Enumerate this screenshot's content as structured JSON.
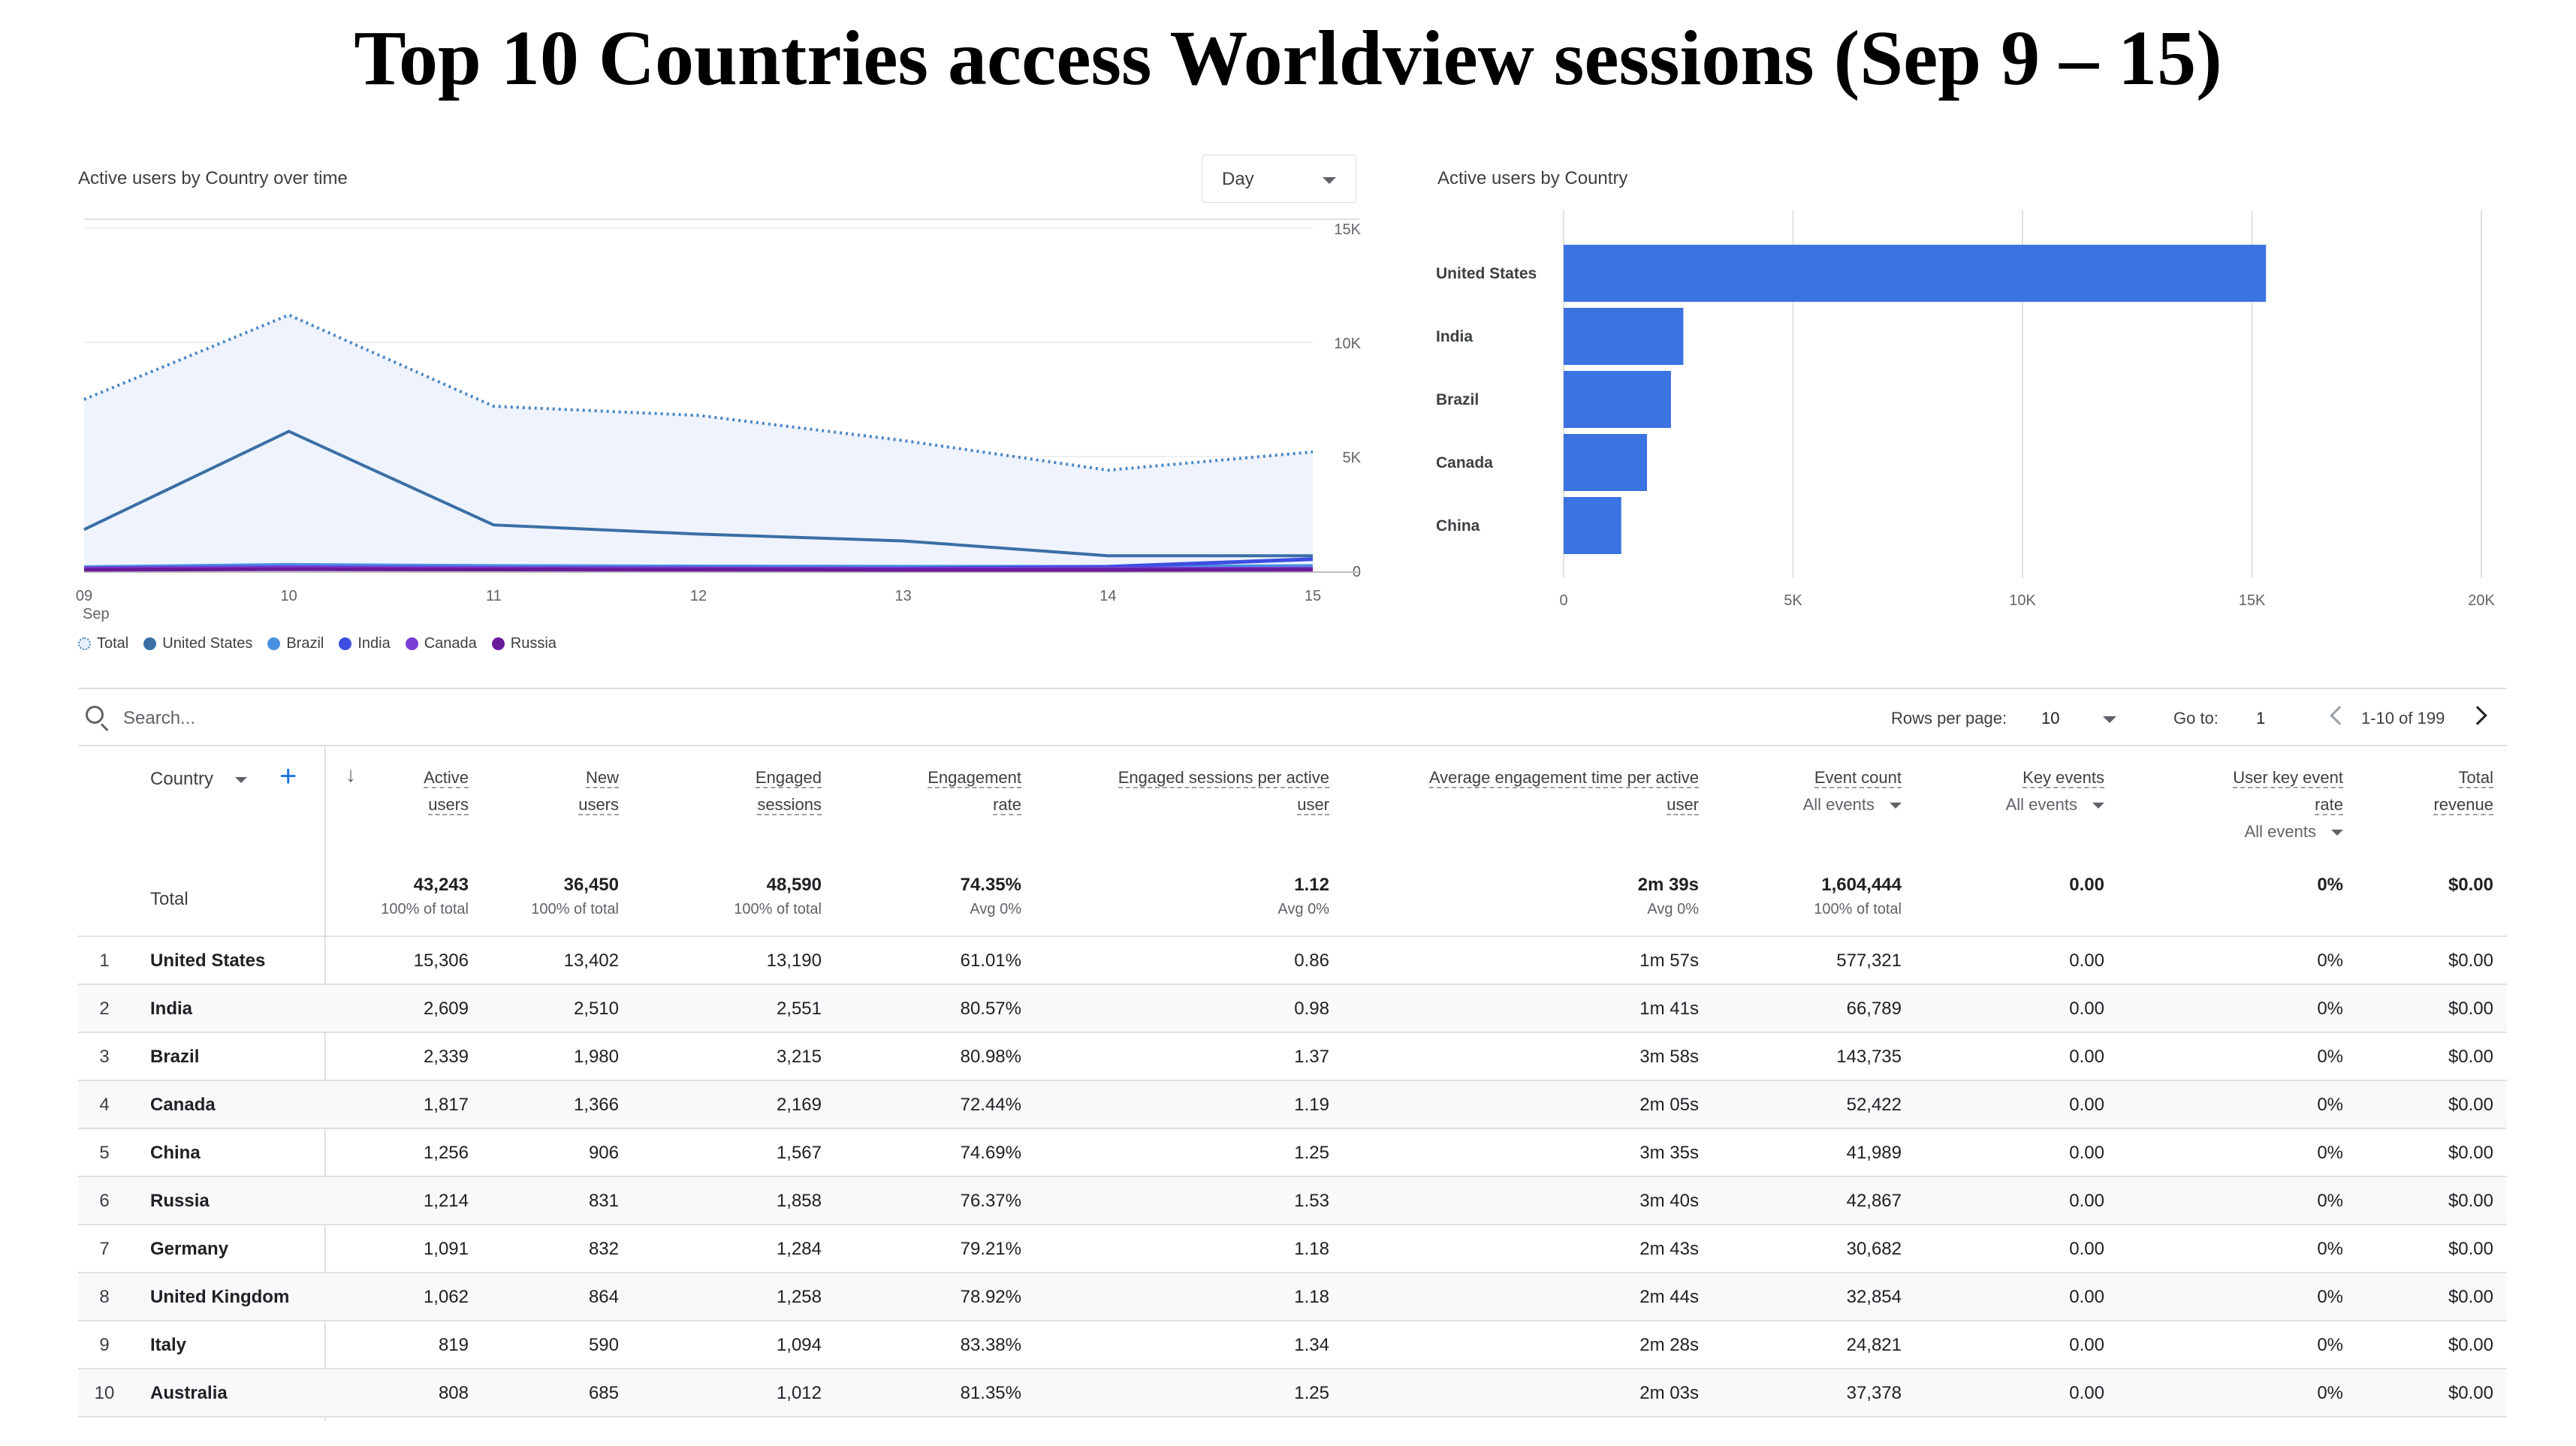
{
  "page": {
    "title": "Top 10 Countries access Worldview sessions (Sep 9 – 15)"
  },
  "line_card": {
    "title": "Active users by Country over time",
    "granularity": "Day"
  },
  "bar_card": {
    "title": "Active users by Country"
  },
  "legend": [
    {
      "label": "Total",
      "color": "#e8f0fe"
    },
    {
      "label": "United States",
      "color": "#3a6fa5"
    },
    {
      "label": "Brazil",
      "color": "#4a90e2"
    },
    {
      "label": "India",
      "color": "#3c4fe0"
    },
    {
      "label": "Canada",
      "color": "#7a3fd6"
    },
    {
      "label": "Russia",
      "color": "#6a1b9a"
    }
  ],
  "chart_data": [
    {
      "type": "line",
      "title": "Active users by Country over time",
      "x": [
        "09",
        "10",
        "11",
        "12",
        "13",
        "14",
        "15"
      ],
      "x_sub_label": "Sep",
      "ylim": [
        0,
        15000
      ],
      "y_ticks": [
        "0",
        "5K",
        "10K",
        "15K"
      ],
      "y_tick_values": [
        0,
        5000,
        10000,
        15000
      ],
      "grid": true,
      "legend_position": "bottom-left",
      "series": [
        {
          "name": "Total",
          "style": "dotted-area",
          "color": "#4a86c5",
          "values": [
            7500,
            11200,
            7200,
            6800,
            5700,
            4400,
            5200
          ]
        },
        {
          "name": "United States",
          "color": "#3a6fa5",
          "values": [
            1800,
            6100,
            2000,
            1600,
            1300,
            650,
            650
          ]
        },
        {
          "name": "Brazil",
          "color": "#4a90e2",
          "values": [
            150,
            250,
            200,
            180,
            170,
            160,
            200
          ]
        },
        {
          "name": "India",
          "color": "#3c4fe0",
          "values": [
            100,
            150,
            120,
            110,
            90,
            170,
            500
          ]
        },
        {
          "name": "Canada",
          "color": "#7a3fd6",
          "values": [
            90,
            140,
            110,
            100,
            80,
            80,
            90
          ]
        },
        {
          "name": "Russia",
          "color": "#6a1b9a",
          "values": [
            40,
            60,
            50,
            40,
            30,
            30,
            40
          ]
        }
      ]
    },
    {
      "type": "bar",
      "orientation": "horizontal",
      "title": "Active users by Country",
      "categories": [
        "United States",
        "India",
        "Brazil",
        "Canada",
        "China"
      ],
      "values": [
        15306,
        2609,
        2339,
        1817,
        1256
      ],
      "xlim": [
        0,
        20000
      ],
      "x_ticks": [
        "0",
        "5K",
        "10K",
        "15K",
        "20K"
      ],
      "x_tick_values": [
        0,
        5000,
        10000,
        15000,
        20000
      ],
      "color": "#3b73e0",
      "grid": true
    }
  ],
  "search": {
    "placeholder": "Search..."
  },
  "pager": {
    "rows_label": "Rows per page:",
    "rows_value": "10",
    "goto_label": "Go to:",
    "goto_value": "1",
    "range": "1-10 of 199"
  },
  "table": {
    "dimension_header": "Country",
    "headers": {
      "active_users": [
        "Active",
        "users"
      ],
      "new_users": [
        "New",
        "users"
      ],
      "engaged_sessions": [
        "Engaged",
        "sessions"
      ],
      "engagement_rate": [
        "Engagement",
        "rate"
      ],
      "sessions_per_user": [
        "Engaged sessions per active",
        "user"
      ],
      "avg_time": [
        "Average engagement time per active",
        "user"
      ],
      "event_count": [
        "Event count"
      ],
      "key_events": [
        "Key events"
      ],
      "user_key_rate": [
        "User key event",
        "rate"
      ],
      "revenue": [
        "Total",
        "revenue"
      ]
    },
    "header_subs": {
      "event_count": "All events",
      "key_events": "All events",
      "user_key_rate": "All events"
    },
    "totals_label": "Total",
    "totals": [
      {
        "v": "43,243",
        "s": "100% of total"
      },
      {
        "v": "36,450",
        "s": "100% of total"
      },
      {
        "v": "48,590",
        "s": "100% of total"
      },
      {
        "v": "74.35%",
        "s": "Avg 0%"
      },
      {
        "v": "1.12",
        "s": "Avg 0%"
      },
      {
        "v": "2m 39s",
        "s": "Avg 0%"
      },
      {
        "v": "1,604,444",
        "s": "100% of total"
      },
      {
        "v": "0.00",
        "s": ""
      },
      {
        "v": "0%",
        "s": ""
      },
      {
        "v": "$0.00",
        "s": ""
      }
    ],
    "rows": [
      {
        "idx": "1",
        "country": "United States",
        "cells": [
          "15,306",
          "13,402",
          "13,190",
          "61.01%",
          "0.86",
          "1m 57s",
          "577,321",
          "0.00",
          "0%",
          "$0.00"
        ]
      },
      {
        "idx": "2",
        "country": "India",
        "cells": [
          "2,609",
          "2,510",
          "2,551",
          "80.57%",
          "0.98",
          "1m 41s",
          "66,789",
          "0.00",
          "0%",
          "$0.00"
        ]
      },
      {
        "idx": "3",
        "country": "Brazil",
        "cells": [
          "2,339",
          "1,980",
          "3,215",
          "80.98%",
          "1.37",
          "3m 58s",
          "143,735",
          "0.00",
          "0%",
          "$0.00"
        ]
      },
      {
        "idx": "4",
        "country": "Canada",
        "cells": [
          "1,817",
          "1,366",
          "2,169",
          "72.44%",
          "1.19",
          "2m 05s",
          "52,422",
          "0.00",
          "0%",
          "$0.00"
        ]
      },
      {
        "idx": "5",
        "country": "China",
        "cells": [
          "1,256",
          "906",
          "1,567",
          "74.69%",
          "1.25",
          "3m 35s",
          "41,989",
          "0.00",
          "0%",
          "$0.00"
        ]
      },
      {
        "idx": "6",
        "country": "Russia",
        "cells": [
          "1,214",
          "831",
          "1,858",
          "76.37%",
          "1.53",
          "3m 40s",
          "42,867",
          "0.00",
          "0%",
          "$0.00"
        ]
      },
      {
        "idx": "7",
        "country": "Germany",
        "cells": [
          "1,091",
          "832",
          "1,284",
          "79.21%",
          "1.18",
          "2m 43s",
          "30,682",
          "0.00",
          "0%",
          "$0.00"
        ]
      },
      {
        "idx": "8",
        "country": "United Kingdom",
        "cells": [
          "1,062",
          "864",
          "1,258",
          "78.92%",
          "1.18",
          "2m 44s",
          "32,854",
          "0.00",
          "0%",
          "$0.00"
        ]
      },
      {
        "idx": "9",
        "country": "Italy",
        "cells": [
          "819",
          "590",
          "1,094",
          "83.38%",
          "1.34",
          "2m 28s",
          "24,821",
          "0.00",
          "0%",
          "$0.00"
        ]
      },
      {
        "idx": "10",
        "country": "Australia",
        "cells": [
          "808",
          "685",
          "1,012",
          "81.35%",
          "1.25",
          "2m 03s",
          "37,378",
          "0.00",
          "0%",
          "$0.00"
        ]
      }
    ]
  }
}
